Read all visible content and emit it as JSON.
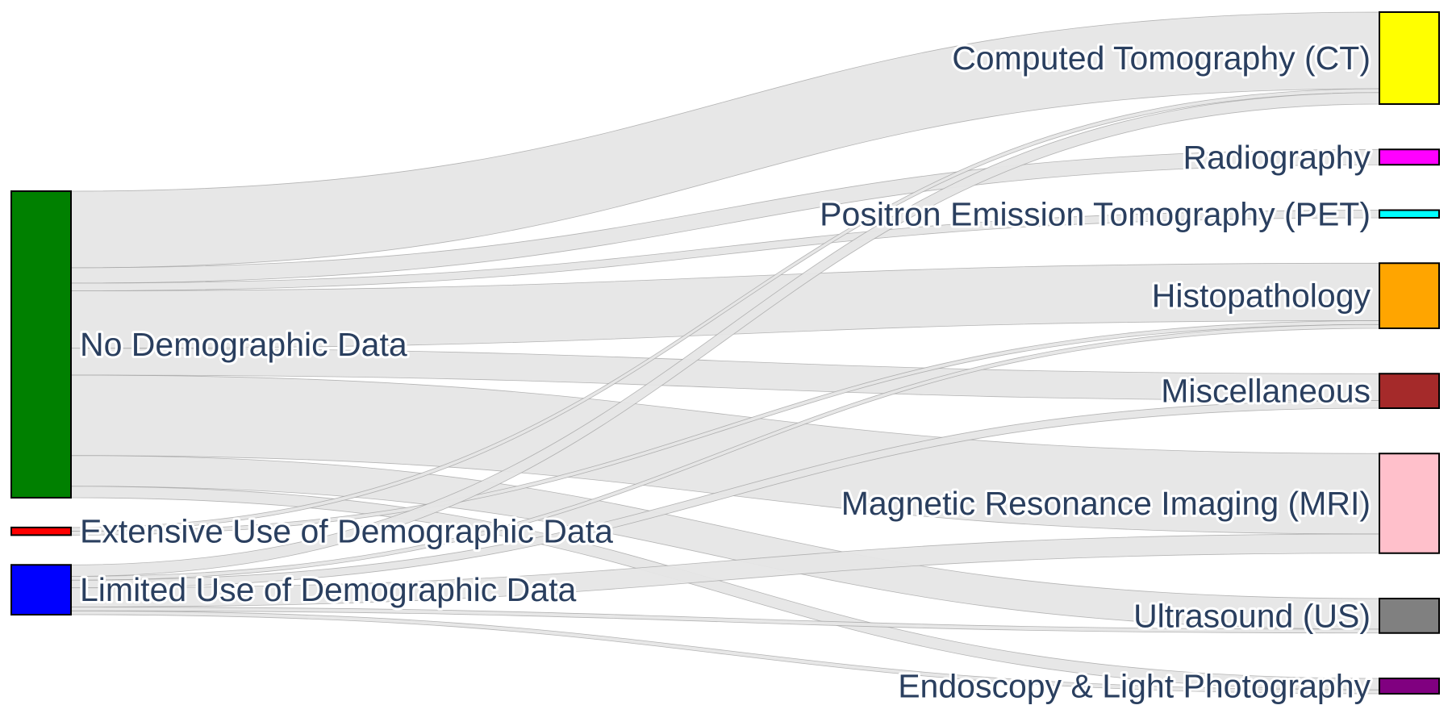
{
  "chart_data": {
    "type": "sankey",
    "title": "",
    "sources": [
      {
        "id": "no_demo",
        "label": "No Demographic Data",
        "color": "#008000"
      },
      {
        "id": "ext_demo",
        "label": "Extensive Use of Demographic Data",
        "color": "#ff0000"
      },
      {
        "id": "lim_demo",
        "label": "Limited Use of Demographic Data",
        "color": "#0000ff"
      }
    ],
    "targets": [
      {
        "id": "ct",
        "label": "Computed Tomography (CT)",
        "color": "#ffff00"
      },
      {
        "id": "radio",
        "label": "Radiography",
        "color": "#ff00ff"
      },
      {
        "id": "pet",
        "label": "Positron Emission Tomography (PET)",
        "color": "#00ffff"
      },
      {
        "id": "histo",
        "label": "Histopathology",
        "color": "#ffa500"
      },
      {
        "id": "misc",
        "label": "Miscellaneous",
        "color": "#a52a2a"
      },
      {
        "id": "mri",
        "label": "Magnetic Resonance Imaging (MRI)",
        "color": "#ffc0cb"
      },
      {
        "id": "us",
        "label": "Ultrasound (US)",
        "color": "#808080"
      },
      {
        "id": "endo",
        "label": "Endoscopy & Light Photography",
        "color": "#800080"
      }
    ],
    "links": [
      {
        "source": "no_demo",
        "target": "ct",
        "value": 20
      },
      {
        "source": "no_demo",
        "target": "radio",
        "value": 4
      },
      {
        "source": "no_demo",
        "target": "pet",
        "value": 2
      },
      {
        "source": "no_demo",
        "target": "histo",
        "value": 15
      },
      {
        "source": "no_demo",
        "target": "misc",
        "value": 7
      },
      {
        "source": "no_demo",
        "target": "mri",
        "value": 21
      },
      {
        "source": "no_demo",
        "target": "us",
        "value": 8
      },
      {
        "source": "no_demo",
        "target": "endo",
        "value": 3
      },
      {
        "source": "ext_demo",
        "target": "ct",
        "value": 1
      },
      {
        "source": "ext_demo",
        "target": "histo",
        "value": 1
      },
      {
        "source": "lim_demo",
        "target": "ct",
        "value": 3
      },
      {
        "source": "lim_demo",
        "target": "histo",
        "value": 1
      },
      {
        "source": "lim_demo",
        "target": "misc",
        "value": 2
      },
      {
        "source": "lim_demo",
        "target": "mri",
        "value": 5
      },
      {
        "source": "lim_demo",
        "target": "us",
        "value": 1
      },
      {
        "source": "lim_demo",
        "target": "endo",
        "value": 1
      }
    ]
  }
}
